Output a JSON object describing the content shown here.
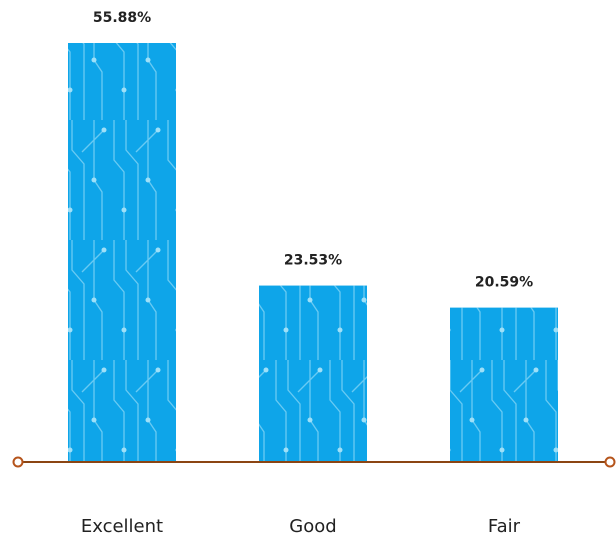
{
  "chart_data": {
    "type": "bar",
    "categories": [
      "Excellent",
      "Good",
      "Fair"
    ],
    "values": [
      55.88,
      23.53,
      20.59
    ],
    "value_labels": [
      "55.88%",
      "23.53%",
      "20.59%"
    ],
    "color": "#0ea5e9"
  }
}
